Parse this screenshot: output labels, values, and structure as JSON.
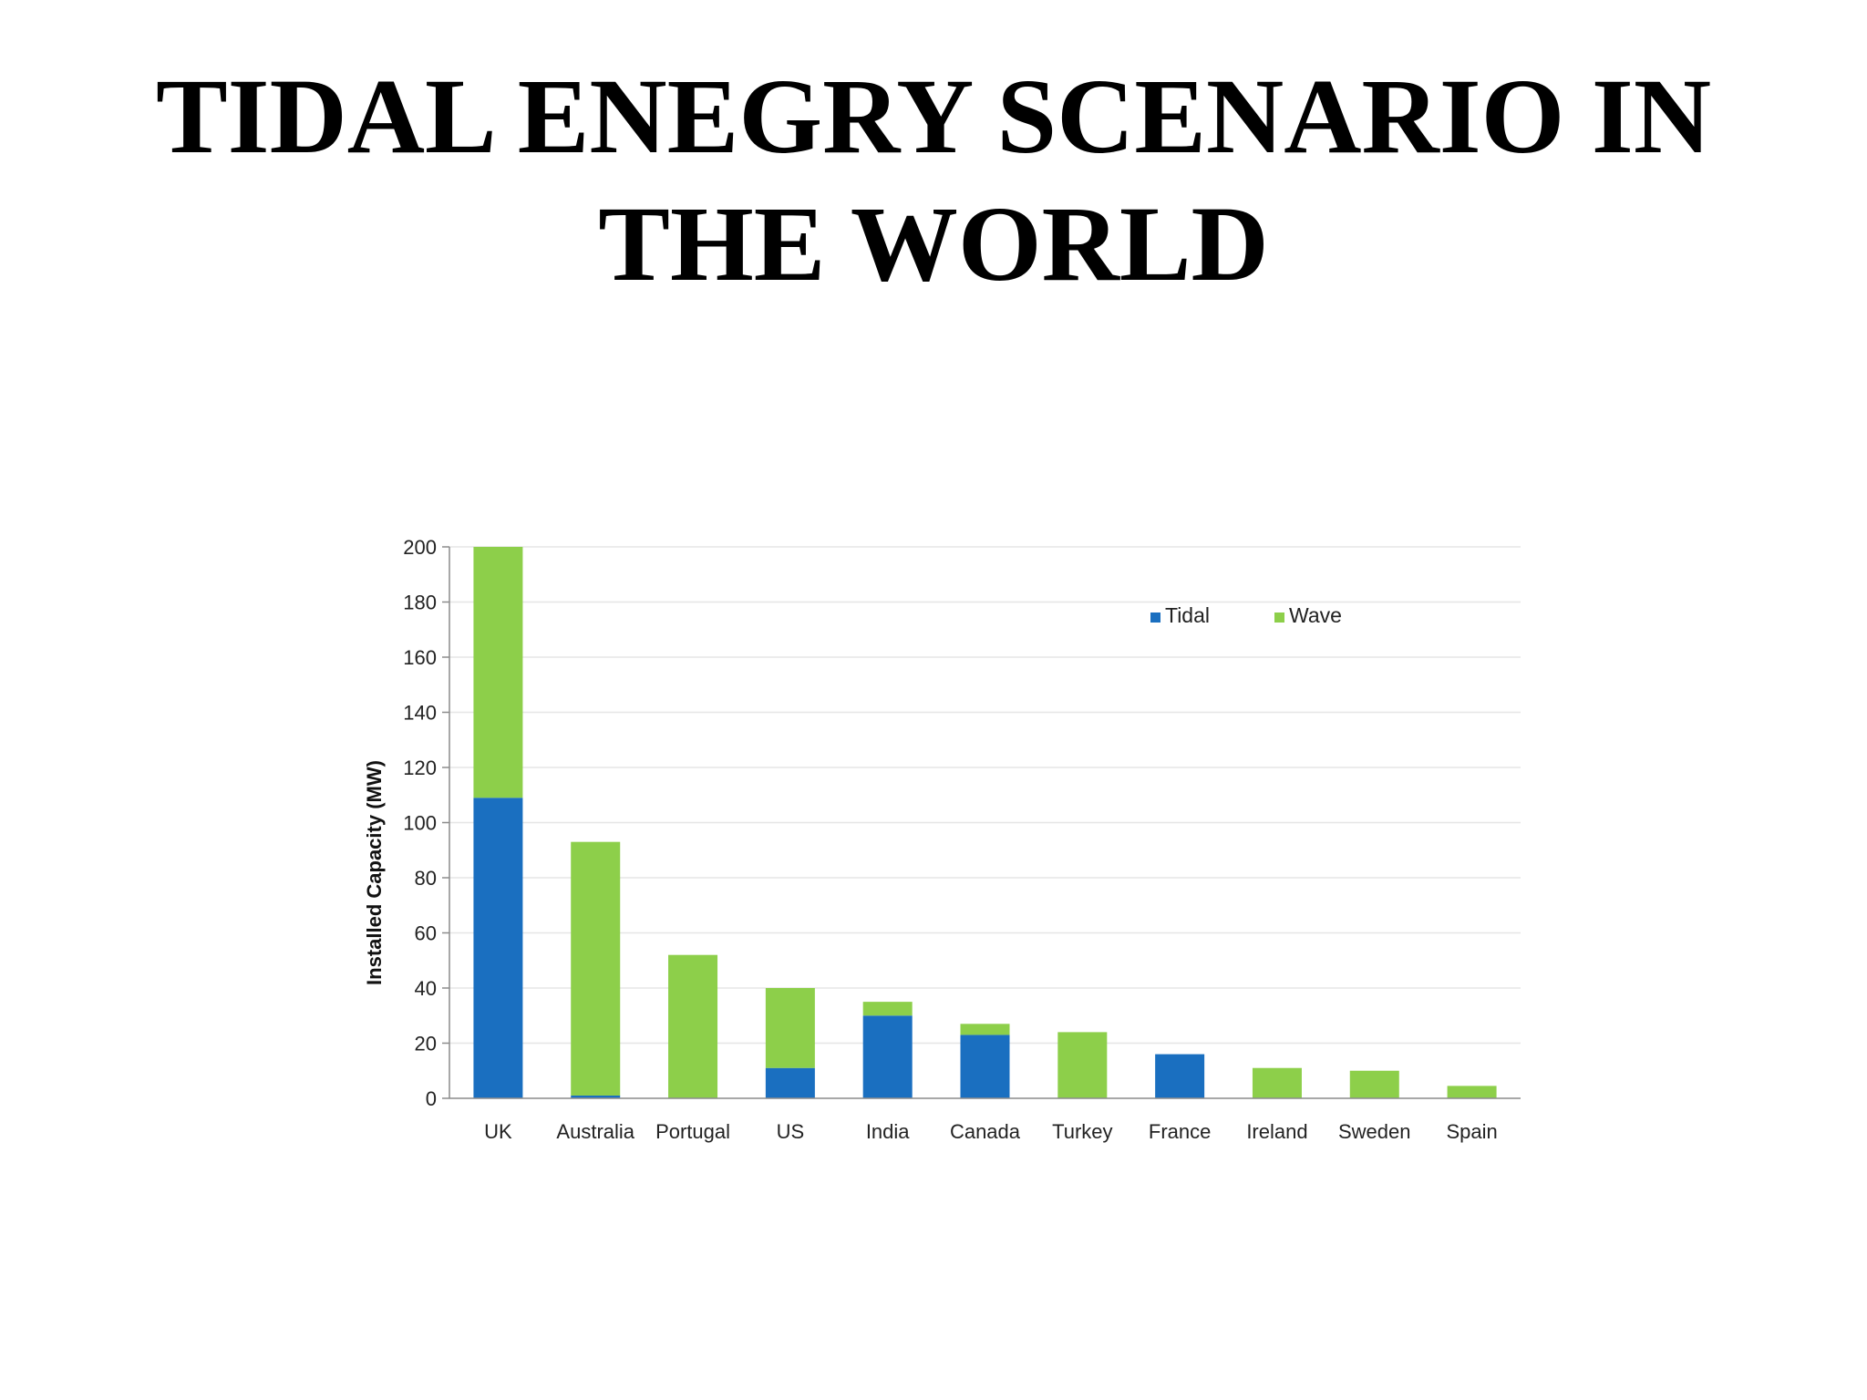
{
  "slide": {
    "title_line1": "TIDAL ENEGRY SCENARIO IN",
    "title_line2": "THE WORLD"
  },
  "chart_data": {
    "type": "bar",
    "stacked": true,
    "title": "",
    "xlabel": "",
    "ylabel": "Installed Capacity (MW)",
    "ylim": [
      0,
      200
    ],
    "yticks": [
      0,
      20,
      40,
      60,
      80,
      100,
      120,
      140,
      160,
      180,
      200
    ],
    "grid": true,
    "legend_position": "top-right",
    "categories": [
      "UK",
      "Australia",
      "Portugal",
      "US",
      "India",
      "Canada",
      "Turkey",
      "France",
      "Ireland",
      "Sweden",
      "Spain"
    ],
    "series": [
      {
        "name": "Tidal",
        "color": "#1a6fc0",
        "values": [
          109,
          1,
          0,
          11,
          30,
          23,
          0,
          16,
          0,
          0,
          0
        ]
      },
      {
        "name": "Wave",
        "color": "#8dcf4a",
        "values": [
          91,
          92,
          52,
          29,
          5,
          4,
          24,
          0,
          11,
          10,
          4.5
        ]
      }
    ]
  }
}
